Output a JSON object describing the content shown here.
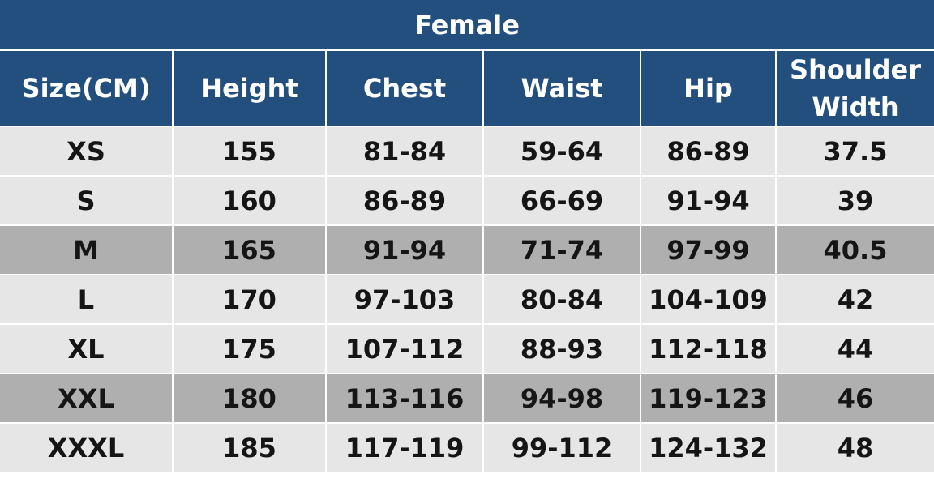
{
  "title": "Female",
  "colors": {
    "header_bg": "#234f7f",
    "row_light": "#e6e6e6",
    "row_dark": "#b0afaf"
  },
  "columns": [
    "Size(CM)",
    "Height",
    "Chest",
    "Waist",
    "Hip",
    "Shoulder Width"
  ],
  "rows": [
    {
      "cells": [
        "XS",
        "155",
        "81-84",
        "59-64",
        "86-89",
        "37.5"
      ],
      "shade": "light"
    },
    {
      "cells": [
        "S",
        "160",
        "86-89",
        "66-69",
        "91-94",
        "39"
      ],
      "shade": "light"
    },
    {
      "cells": [
        "M",
        "165",
        "91-94",
        "71-74",
        "97-99",
        "40.5"
      ],
      "shade": "dark"
    },
    {
      "cells": [
        "L",
        "170",
        "97-103",
        "80-84",
        "104-109",
        "42"
      ],
      "shade": "light"
    },
    {
      "cells": [
        "XL",
        "175",
        "107-112",
        "88-93",
        "112-118",
        "44"
      ],
      "shade": "light"
    },
    {
      "cells": [
        "XXL",
        "180",
        "113-116",
        "94-98",
        "119-123",
        "46"
      ],
      "shade": "dark"
    },
    {
      "cells": [
        "XXXL",
        "185",
        "117-119",
        "99-112",
        "124-132",
        "48"
      ],
      "shade": "light"
    }
  ]
}
